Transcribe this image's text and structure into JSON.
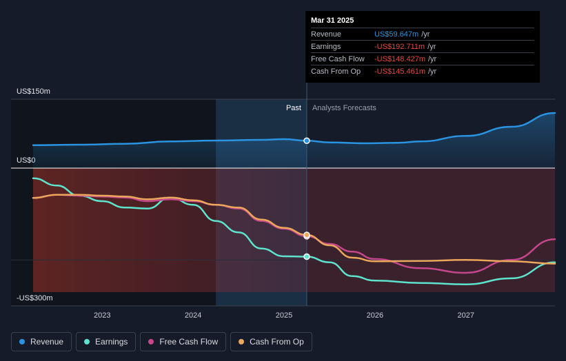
{
  "chart_data": {
    "type": "line",
    "y_axis": {
      "labels": [
        "US$150m",
        "US$0",
        "-US$300m"
      ],
      "ticks": [
        150,
        0,
        -300
      ],
      "ylim": [
        -300,
        150
      ]
    },
    "x_axis": {
      "tick_labels": [
        "2023",
        "2024",
        "2025",
        "2026",
        "2027"
      ],
      "ticks": [
        2023,
        2024,
        2025,
        2026,
        2027
      ],
      "xlim": [
        2022.24,
        2027.98
      ]
    },
    "divider_x": 2025.25,
    "highlight_start_x": 2024.25,
    "region_labels": {
      "past": "Past",
      "forecast": "Analysts Forecasts"
    },
    "series": [
      {
        "name": "Revenue",
        "color": "#2b94e2",
        "x": [
          2022.24,
          2022.75,
          2023.25,
          2023.75,
          2024.25,
          2024.75,
          2025.0,
          2025.25,
          2025.5,
          2025.9,
          2026.25,
          2026.5,
          2027.0,
          2027.5,
          2027.98
        ],
        "y": [
          50,
          51,
          53,
          58,
          60,
          61.5,
          63,
          59.6,
          56,
          54,
          55,
          58,
          70,
          90,
          120
        ]
      },
      {
        "name": "Earnings",
        "color": "#5ee3cc",
        "x": [
          2022.24,
          2022.5,
          2022.75,
          2023.0,
          2023.25,
          2023.5,
          2023.75,
          2024.0,
          2024.25,
          2024.5,
          2024.75,
          2025.0,
          2025.25,
          2025.5,
          2025.75,
          2026.0,
          2026.5,
          2027.0,
          2027.5,
          2027.98
        ],
        "y": [
          -22,
          -38,
          -60,
          -72,
          -86,
          -88,
          -64,
          -80,
          -115,
          -140,
          -175,
          -192,
          -192.7,
          -205,
          -235,
          -245,
          -250,
          -253,
          -240,
          -205
        ]
      },
      {
        "name": "Free Cash Flow",
        "color": "#c4478b",
        "x": [
          2022.24,
          2022.5,
          2022.75,
          2023.0,
          2023.25,
          2023.5,
          2023.75,
          2024.0,
          2024.25,
          2024.5,
          2024.75,
          2025.0,
          2025.25,
          2025.5,
          2025.75,
          2026.0,
          2026.5,
          2027.0,
          2027.5,
          2027.98
        ],
        "y": [
          -65,
          -58,
          -60,
          -62,
          -64,
          -72,
          -68,
          -72,
          -80,
          -88,
          -115,
          -132,
          -148.4,
          -165,
          -182,
          -198,
          -218,
          -228,
          -200,
          -155
        ]
      },
      {
        "name": "Cash From Op",
        "color": "#eba75c",
        "x": [
          2022.24,
          2022.5,
          2022.75,
          2023.0,
          2023.25,
          2023.5,
          2023.75,
          2024.0,
          2024.25,
          2024.5,
          2024.75,
          2025.0,
          2025.25,
          2025.5,
          2025.75,
          2026.0,
          2026.5,
          2027.0,
          2027.5,
          2027.98
        ],
        "y": [
          -65,
          -58,
          -58,
          -60,
          -62,
          -68,
          -64,
          -70,
          -80,
          -86,
          -112,
          -130,
          -145.5,
          -168,
          -195,
          -203,
          -202,
          -200,
          -203,
          -208
        ]
      }
    ],
    "tooltip": {
      "date": "Mar 31 2025",
      "rows": [
        {
          "label": "Revenue",
          "value": "US$59.647m",
          "unit": "/yr",
          "color": "#2b94e2"
        },
        {
          "label": "Earnings",
          "value": "-US$192.711m",
          "unit": "/yr",
          "color": "#e8473f"
        },
        {
          "label": "Free Cash Flow",
          "value": "-US$148.427m",
          "unit": "/yr",
          "color": "#e8473f"
        },
        {
          "label": "Cash From Op",
          "value": "-US$145.461m",
          "unit": "/yr",
          "color": "#e8473f"
        }
      ]
    }
  },
  "legend": [
    {
      "label": "Revenue",
      "color": "#2b94e2"
    },
    {
      "label": "Earnings",
      "color": "#5ee3cc"
    },
    {
      "label": "Free Cash Flow",
      "color": "#c4478b"
    },
    {
      "label": "Cash From Op",
      "color": "#eba75c"
    }
  ]
}
